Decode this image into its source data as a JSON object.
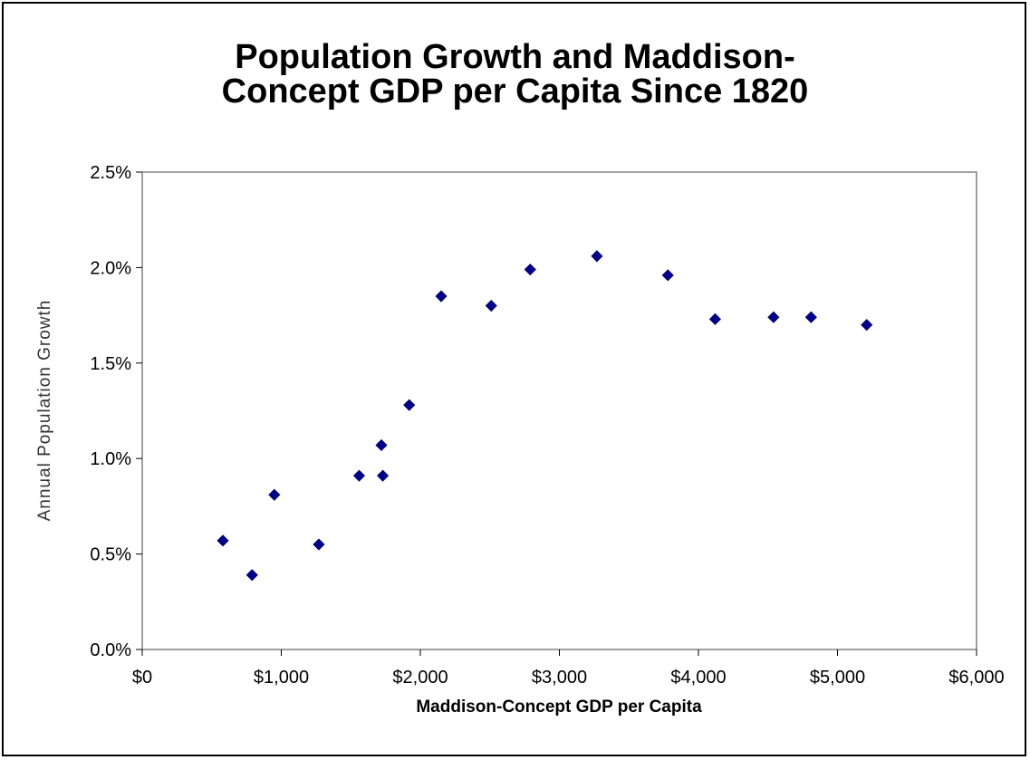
{
  "chart_data": {
    "type": "scatter",
    "title_lines": [
      "Population Growth and Maddison-",
      "Concept GDP per Capita Since 1820"
    ],
    "xlabel": "Maddison-Concept GDP per Capita",
    "ylabel": "Annual Population Growth",
    "xlim": [
      0,
      6000
    ],
    "ylim": [
      0,
      0.025
    ],
    "x_ticks": [
      0,
      1000,
      2000,
      3000,
      4000,
      5000,
      6000
    ],
    "x_tick_labels": [
      "$0",
      "$1,000",
      "$2,000",
      "$3,000",
      "$4,000",
      "$5,000",
      "$6,000"
    ],
    "y_ticks": [
      0,
      0.005,
      0.01,
      0.015,
      0.02,
      0.025
    ],
    "y_tick_labels": [
      "0.0%",
      "0.5%",
      "1.0%",
      "1.5%",
      "2.0%",
      "2.5%"
    ],
    "grid": false,
    "legend": "none",
    "marker_color": "#00008B",
    "points": [
      {
        "x": 580,
        "y": 0.0057
      },
      {
        "x": 790,
        "y": 0.0039
      },
      {
        "x": 950,
        "y": 0.0081
      },
      {
        "x": 1270,
        "y": 0.0055
      },
      {
        "x": 1560,
        "y": 0.0091
      },
      {
        "x": 1720,
        "y": 0.0107
      },
      {
        "x": 1730,
        "y": 0.0091
      },
      {
        "x": 1920,
        "y": 0.0128
      },
      {
        "x": 2150,
        "y": 0.0185
      },
      {
        "x": 2510,
        "y": 0.018
      },
      {
        "x": 2790,
        "y": 0.0199
      },
      {
        "x": 3270,
        "y": 0.0206
      },
      {
        "x": 3780,
        "y": 0.0196
      },
      {
        "x": 4120,
        "y": 0.0173
      },
      {
        "x": 4540,
        "y": 0.0174
      },
      {
        "x": 4810,
        "y": 0.0174
      },
      {
        "x": 5210,
        "y": 0.017
      }
    ]
  }
}
